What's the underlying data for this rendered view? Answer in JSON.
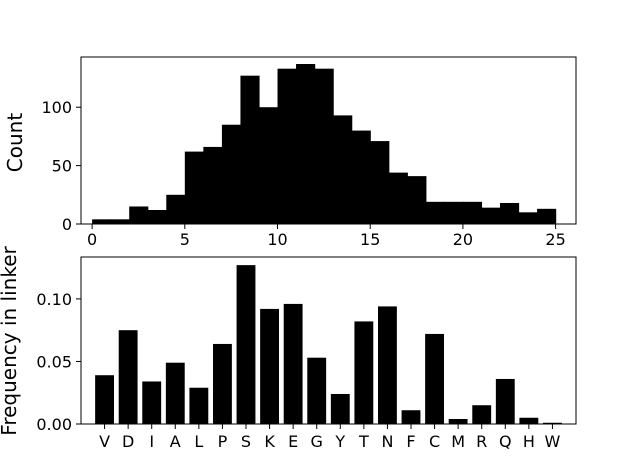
{
  "chart_data": [
    {
      "type": "bar",
      "subtype": "histogram",
      "title": "",
      "xlabel": "",
      "ylabel": "Count",
      "xlim": [
        -0.6,
        26.1
      ],
      "ylim": [
        0,
        143
      ],
      "xticks": [
        0,
        5,
        10,
        15,
        20,
        25
      ],
      "yticks": [
        0,
        50,
        100
      ],
      "bin_width": 1,
      "bins_start": [
        0,
        1,
        2,
        3,
        4,
        5,
        6,
        7,
        8,
        9,
        10,
        11,
        12,
        13,
        14,
        15,
        16,
        17,
        18,
        19,
        20,
        21,
        22,
        23,
        24
      ],
      "values": [
        4,
        4,
        15,
        12,
        25,
        62,
        66,
        85,
        127,
        100,
        133,
        137,
        133,
        93,
        80,
        71,
        44,
        41,
        19,
        19,
        19,
        14,
        18,
        10,
        13
      ],
      "color": "#000000",
      "grid": false
    },
    {
      "type": "bar",
      "title": "",
      "xlabel": "",
      "ylabel": "Frequency in linker",
      "categories": [
        "V",
        "D",
        "I",
        "A",
        "L",
        "P",
        "S",
        "K",
        "E",
        "G",
        "Y",
        "T",
        "N",
        "F",
        "C",
        "M",
        "R",
        "Q",
        "H",
        "W"
      ],
      "values": [
        0.039,
        0.075,
        0.034,
        0.049,
        0.029,
        0.064,
        0.127,
        0.092,
        0.096,
        0.053,
        0.024,
        0.082,
        0.094,
        0.011,
        0.072,
        0.004,
        0.015,
        0.036,
        0.005,
        0.001
      ],
      "ylim": [
        0,
        0.1335
      ],
      "yticks": [
        0.0,
        0.05,
        0.1
      ],
      "ytick_labels": [
        "0.00",
        "0.05",
        "0.10"
      ],
      "color": "#000000",
      "grid": false
    }
  ]
}
